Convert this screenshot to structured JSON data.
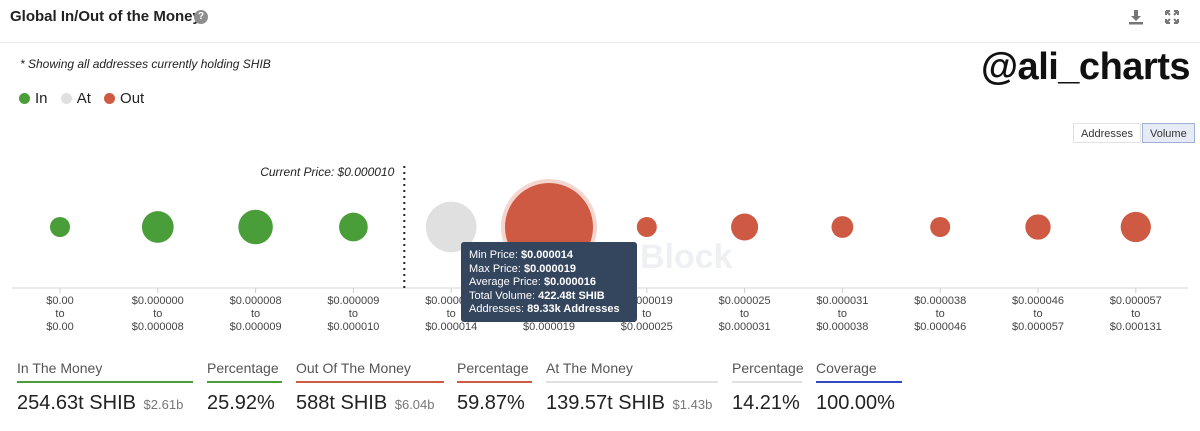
{
  "header": {
    "title": "Global In/Out of the Money",
    "help_icon": "question-icon",
    "download_icon": "download-icon",
    "expand_icon": "fullscreen-icon"
  },
  "note": "* Showing all addresses currently holding SHIB",
  "brand": "@ali_charts",
  "legend": [
    {
      "label": "In",
      "color": "#4a9e3a"
    },
    {
      "label": "At",
      "color": "#e0e0e0"
    },
    {
      "label": "Out",
      "color": "#cf5a43"
    }
  ],
  "toggles": {
    "addresses": "Addresses",
    "volume": "Volume",
    "active": "Volume"
  },
  "current_price_label": "Current Price: $0.000010",
  "watermark": "Block",
  "colors": {
    "in": "#4a9e3a",
    "at": "#e0e0e0",
    "out": "#cf5a43",
    "coverage": "#3347c4"
  },
  "chart_data": {
    "type": "scatter",
    "metric": "Volume",
    "buckets": [
      {
        "range": [
          "$0.00",
          "to",
          "$0.00"
        ],
        "status": "in",
        "size": 2
      },
      {
        "range": [
          "$0.000000",
          "to",
          "$0.000008"
        ],
        "status": "in",
        "size": 55
      },
      {
        "range": [
          "$0.000008",
          "to",
          "$0.000009"
        ],
        "status": "in",
        "size": 65
      },
      {
        "range": [
          "$0.000009",
          "to",
          "$0.000010"
        ],
        "status": "in",
        "size": 45
      },
      {
        "range": [
          "$0.000010",
          "to",
          "$0.000014"
        ],
        "status": "at",
        "size": 140
      },
      {
        "range": [
          "$0.000014",
          "to",
          "$0.000019"
        ],
        "status": "out",
        "size": 422.48
      },
      {
        "range": [
          "$0.000019",
          "to",
          "$0.000025"
        ],
        "status": "out",
        "size": 20
      },
      {
        "range": [
          "$0.000025",
          "to",
          "$0.000031"
        ],
        "status": "out",
        "size": 40
      },
      {
        "range": [
          "$0.000031",
          "to",
          "$0.000038"
        ],
        "status": "out",
        "size": 26
      },
      {
        "range": [
          "$0.000038",
          "to",
          "$0.000046"
        ],
        "status": "out",
        "size": 16
      },
      {
        "range": [
          "$0.000046",
          "to",
          "$0.000057"
        ],
        "status": "out",
        "size": 35
      },
      {
        "range": [
          "$0.000057",
          "to",
          "$0.000131"
        ],
        "status": "out",
        "size": 50
      }
    ],
    "current_price_bucket": 4,
    "highlighted_bucket": 5
  },
  "tooltip": {
    "rows": [
      {
        "label": "Min Price: ",
        "value": "$0.000014"
      },
      {
        "label": "Max Price: ",
        "value": "$0.000019"
      },
      {
        "label": "Average Price: ",
        "value": "$0.000016"
      },
      {
        "label": "Total Volume: ",
        "value": "422.48t SHIB"
      },
      {
        "label": "Addresses: ",
        "value": "89.33k Addresses"
      }
    ]
  },
  "stats": [
    {
      "label": "In The Money",
      "value": "254.63t SHIB",
      "sub": "$2.61b",
      "color": "#4a9e3a"
    },
    {
      "label": "Percentage",
      "value": "25.92%",
      "sub": "",
      "color": "#4a9e3a"
    },
    {
      "label": "Out Of The Money",
      "value": "588t SHIB",
      "sub": "$6.04b",
      "color": "#cf5a43"
    },
    {
      "label": "Percentage",
      "value": "59.87%",
      "sub": "",
      "color": "#cf5a43"
    },
    {
      "label": "At The Money",
      "value": "139.57t SHIB",
      "sub": "$1.43b",
      "color": "#e0e0e0"
    },
    {
      "label": "Percentage",
      "value": "14.21%",
      "sub": "",
      "color": "#e0e0e0"
    },
    {
      "label": "Coverage",
      "value": "100.00%",
      "sub": "",
      "color": "#3347c4"
    }
  ]
}
